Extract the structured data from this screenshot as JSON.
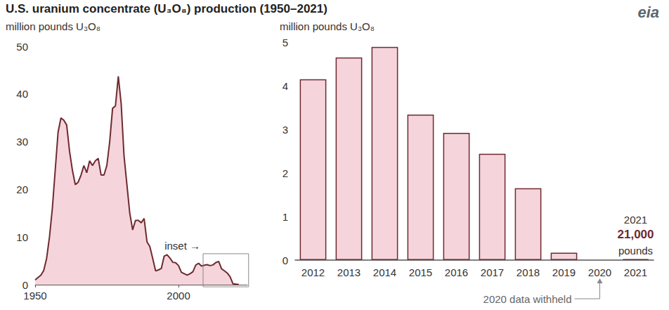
{
  "title": "U.S. uranium concentrate (U₃O₈) production (1950–2021)",
  "logo": "eia",
  "chart_data": [
    {
      "type": "area",
      "ylabel": "million pounds U₃O₈",
      "x": [
        1950,
        1951,
        1952,
        1953,
        1954,
        1955,
        1956,
        1957,
        1958,
        1959,
        1960,
        1961,
        1962,
        1963,
        1964,
        1965,
        1966,
        1967,
        1968,
        1969,
        1970,
        1971,
        1972,
        1973,
        1974,
        1975,
        1976,
        1977,
        1978,
        1979,
        1980,
        1981,
        1982,
        1983,
        1984,
        1985,
        1986,
        1987,
        1988,
        1989,
        1990,
        1991,
        1992,
        1993,
        1994,
        1995,
        1996,
        1997,
        1998,
        1999,
        2000,
        2001,
        2002,
        2003,
        2004,
        2005,
        2006,
        2007,
        2008,
        2009,
        2010,
        2011,
        2012,
        2013,
        2014,
        2015,
        2016,
        2017,
        2018,
        2019,
        2020,
        2021
      ],
      "values": [
        1.0,
        1.5,
        2.0,
        3.0,
        5.5,
        10,
        16,
        24,
        32,
        35,
        34.5,
        33.5,
        28,
        24,
        21,
        21.5,
        23,
        25,
        23.5,
        26,
        25,
        26,
        26.5,
        23,
        23,
        25,
        30,
        37,
        37.5,
        43.7,
        38,
        27,
        21,
        15,
        11.5,
        13.5,
        13.5,
        13,
        13.9,
        9,
        8,
        5.5,
        2.9,
        3.1,
        3.4,
        6.0,
        6.3,
        5.6,
        4.7,
        4.6,
        4.0,
        2.6,
        2.3,
        2.0,
        2.3,
        2.7,
        4.1,
        4.5,
        3.9,
        4.1,
        4.2,
        4.0,
        4.15,
        4.65,
        4.89,
        3.34,
        2.92,
        2.44,
        1.65,
        0.17,
        null,
        0.021
      ],
      "color": "#f5d5db",
      "line_color": "#6e2a30",
      "xlim": [
        1950,
        2024
      ],
      "xticks": [
        1950,
        2000
      ],
      "ylim": [
        0,
        50
      ],
      "yticks": [
        0,
        10,
        20,
        30,
        40,
        50
      ],
      "grid": false,
      "annotations": [
        "inset →"
      ]
    },
    {
      "type": "bar",
      "ylabel": "million pounds U₃O₈",
      "categories": [
        "2012",
        "2013",
        "2014",
        "2015",
        "2016",
        "2017",
        "2018",
        "2019",
        "2020",
        "2021"
      ],
      "values": [
        4.15,
        4.65,
        4.89,
        3.34,
        2.92,
        2.44,
        1.65,
        0.17,
        null,
        0.021
      ],
      "color": "#f5d5db",
      "line_color": "#6e2a30",
      "ylim": [
        0,
        5
      ],
      "yticks": [
        0,
        1,
        2,
        3,
        4,
        5
      ],
      "grid": false,
      "annotations": [
        "2021",
        "21,000",
        "pounds",
        "2020 data withheld"
      ]
    }
  ]
}
